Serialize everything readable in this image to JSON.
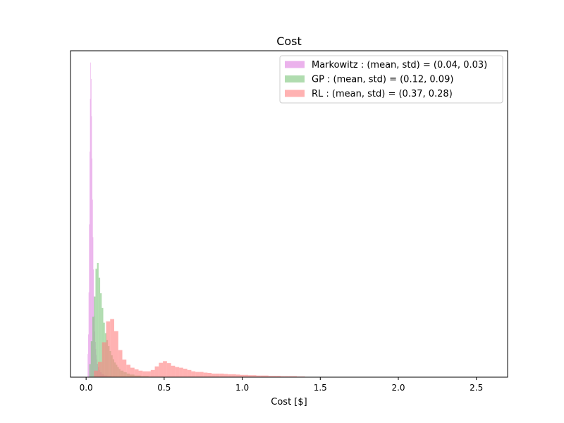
{
  "chart_data": {
    "type": "histogram",
    "title": "Cost",
    "xlabel": "Cost [$]",
    "ylabel": "",
    "xlim": [
      -0.1,
      2.7
    ],
    "ylim": [
      0,
      100
    ],
    "xticks": [
      0.0,
      0.5,
      1.0,
      1.5,
      2.0,
      2.5
    ],
    "xtick_labels": [
      "0.0",
      "0.5",
      "1.0",
      "1.5",
      "2.0",
      "2.5"
    ],
    "yticks_visible": false,
    "grid": false,
    "legend_position": "top-right",
    "series": [
      {
        "name": "Markowitz",
        "label": "Markowitz : (mean, std) = (0.04, 0.03)",
        "color": "#dd7ee0",
        "alpha": 0.6,
        "mean": 0.04,
        "std": 0.03,
        "bins": [
          [
            0.01,
            0.013,
            7.1
          ],
          [
            0.013,
            0.016,
            13.1
          ],
          [
            0.016,
            0.019,
            26.0
          ],
          [
            0.019,
            0.022,
            46.8
          ],
          [
            0.022,
            0.025,
            69.1
          ],
          [
            0.025,
            0.028,
            85.3
          ],
          [
            0.028,
            0.031,
            96.4
          ],
          [
            0.031,
            0.034,
            91.4
          ],
          [
            0.034,
            0.037,
            79.9
          ],
          [
            0.037,
            0.04,
            67.0
          ],
          [
            0.04,
            0.043,
            54.4
          ],
          [
            0.043,
            0.046,
            42.9
          ],
          [
            0.046,
            0.049,
            33.0
          ],
          [
            0.049,
            0.052,
            24.8
          ],
          [
            0.052,
            0.055,
            18.7
          ],
          [
            0.055,
            0.058,
            14.0
          ],
          [
            0.058,
            0.061,
            10.8
          ],
          [
            0.061,
            0.064,
            8.6
          ],
          [
            0.064,
            0.067,
            6.8
          ],
          [
            0.067,
            0.07,
            5.4
          ],
          [
            0.07,
            0.076,
            4.1
          ],
          [
            0.076,
            0.082,
            3.1
          ],
          [
            0.082,
            0.09,
            2.2
          ],
          [
            0.09,
            0.1,
            1.5
          ],
          [
            0.1,
            0.115,
            0.9
          ],
          [
            0.115,
            0.135,
            0.5
          ],
          [
            0.135,
            0.16,
            0.3
          ],
          [
            0.16,
            0.2,
            0.15
          ]
        ]
      },
      {
        "name": "GP",
        "label": "GP : (mean, std) = (0.12, 0.09)",
        "color": "#7bc47a",
        "alpha": 0.6,
        "mean": 0.12,
        "std": 0.09,
        "bins": [
          [
            0.02,
            0.03,
            4.0
          ],
          [
            0.03,
            0.04,
            11.0
          ],
          [
            0.04,
            0.05,
            18.5
          ],
          [
            0.05,
            0.06,
            24.7
          ],
          [
            0.06,
            0.07,
            33.2
          ],
          [
            0.07,
            0.08,
            35.0
          ],
          [
            0.08,
            0.09,
            30.5
          ],
          [
            0.09,
            0.1,
            25.7
          ],
          [
            0.1,
            0.11,
            21.2
          ],
          [
            0.11,
            0.12,
            16.7
          ],
          [
            0.12,
            0.13,
            13.5
          ],
          [
            0.13,
            0.14,
            11.4
          ],
          [
            0.14,
            0.15,
            9.5
          ],
          [
            0.15,
            0.16,
            8.0
          ],
          [
            0.16,
            0.17,
            6.7
          ],
          [
            0.17,
            0.18,
            5.5
          ],
          [
            0.18,
            0.19,
            4.5
          ],
          [
            0.19,
            0.2,
            3.8
          ],
          [
            0.2,
            0.21,
            3.1
          ],
          [
            0.21,
            0.22,
            2.5
          ],
          [
            0.22,
            0.24,
            2.0
          ],
          [
            0.24,
            0.26,
            1.5
          ],
          [
            0.26,
            0.28,
            1.1
          ],
          [
            0.28,
            0.31,
            0.8
          ],
          [
            0.31,
            0.35,
            0.5
          ],
          [
            0.35,
            0.4,
            0.3
          ],
          [
            0.4,
            0.5,
            0.15
          ]
        ]
      },
      {
        "name": "RL",
        "label": "RL : (mean, std) = (0.37, 0.28)",
        "color": "#ff7f7f",
        "alpha": 0.6,
        "mean": 0.37,
        "std": 0.28,
        "bins": [
          [
            0.05,
            0.076,
            2.0
          ],
          [
            0.076,
            0.102,
            4.7
          ],
          [
            0.102,
            0.128,
            10.7
          ],
          [
            0.128,
            0.154,
            17.1
          ],
          [
            0.154,
            0.18,
            17.8
          ],
          [
            0.18,
            0.206,
            14.1
          ],
          [
            0.206,
            0.232,
            8.3
          ],
          [
            0.232,
            0.258,
            5.4
          ],
          [
            0.258,
            0.284,
            3.8
          ],
          [
            0.284,
            0.31,
            2.9
          ],
          [
            0.31,
            0.336,
            2.4
          ],
          [
            0.336,
            0.362,
            2.0
          ],
          [
            0.362,
            0.388,
            1.8
          ],
          [
            0.388,
            0.414,
            1.8
          ],
          [
            0.414,
            0.44,
            2.2
          ],
          [
            0.44,
            0.466,
            3.3
          ],
          [
            0.466,
            0.492,
            4.4
          ],
          [
            0.492,
            0.518,
            4.9
          ],
          [
            0.518,
            0.544,
            4.3
          ],
          [
            0.544,
            0.57,
            3.5
          ],
          [
            0.57,
            0.596,
            3.1
          ],
          [
            0.596,
            0.622,
            2.9
          ],
          [
            0.622,
            0.648,
            2.6
          ],
          [
            0.648,
            0.674,
            2.2
          ],
          [
            0.674,
            0.7,
            1.8
          ],
          [
            0.7,
            0.726,
            1.6
          ],
          [
            0.726,
            0.752,
            1.6
          ],
          [
            0.752,
            0.778,
            1.4
          ],
          [
            0.778,
            0.804,
            1.3
          ],
          [
            0.804,
            0.83,
            1.1
          ],
          [
            0.83,
            0.856,
            1.1
          ],
          [
            0.856,
            0.882,
            1.1
          ],
          [
            0.882,
            0.908,
            1.0
          ],
          [
            0.908,
            0.934,
            0.9
          ],
          [
            0.934,
            0.96,
            0.9
          ],
          [
            0.96,
            0.986,
            0.8
          ],
          [
            0.986,
            1.012,
            0.7
          ],
          [
            1.012,
            1.038,
            0.7
          ],
          [
            1.038,
            1.064,
            0.6
          ],
          [
            1.064,
            1.09,
            0.6
          ],
          [
            1.09,
            1.116,
            0.5
          ],
          [
            1.116,
            1.142,
            0.5
          ],
          [
            1.142,
            1.168,
            0.5
          ],
          [
            1.168,
            1.194,
            0.4
          ],
          [
            1.194,
            1.22,
            0.4
          ],
          [
            1.22,
            1.246,
            0.4
          ],
          [
            1.246,
            1.272,
            0.3
          ],
          [
            1.272,
            1.298,
            0.3
          ],
          [
            1.298,
            1.324,
            0.3
          ],
          [
            1.324,
            1.35,
            0.3
          ],
          [
            1.35,
            1.376,
            0.2
          ],
          [
            1.376,
            1.402,
            0.2
          ],
          [
            1.402,
            1.454,
            0.1
          ],
          [
            1.454,
            1.506,
            0.1
          ],
          [
            1.506,
            1.558,
            0.08
          ],
          [
            1.558,
            1.61,
            0.06
          ],
          [
            1.61,
            1.714,
            0.05
          ],
          [
            1.714,
            1.818,
            0.04
          ],
          [
            1.818,
            1.922,
            0.03
          ],
          [
            1.922,
            2.026,
            0.03
          ],
          [
            2.026,
            2.13,
            0.02
          ],
          [
            2.13,
            2.234,
            0.02
          ],
          [
            2.234,
            2.39,
            0.02
          ],
          [
            2.39,
            2.55,
            0.02
          ]
        ]
      }
    ]
  }
}
